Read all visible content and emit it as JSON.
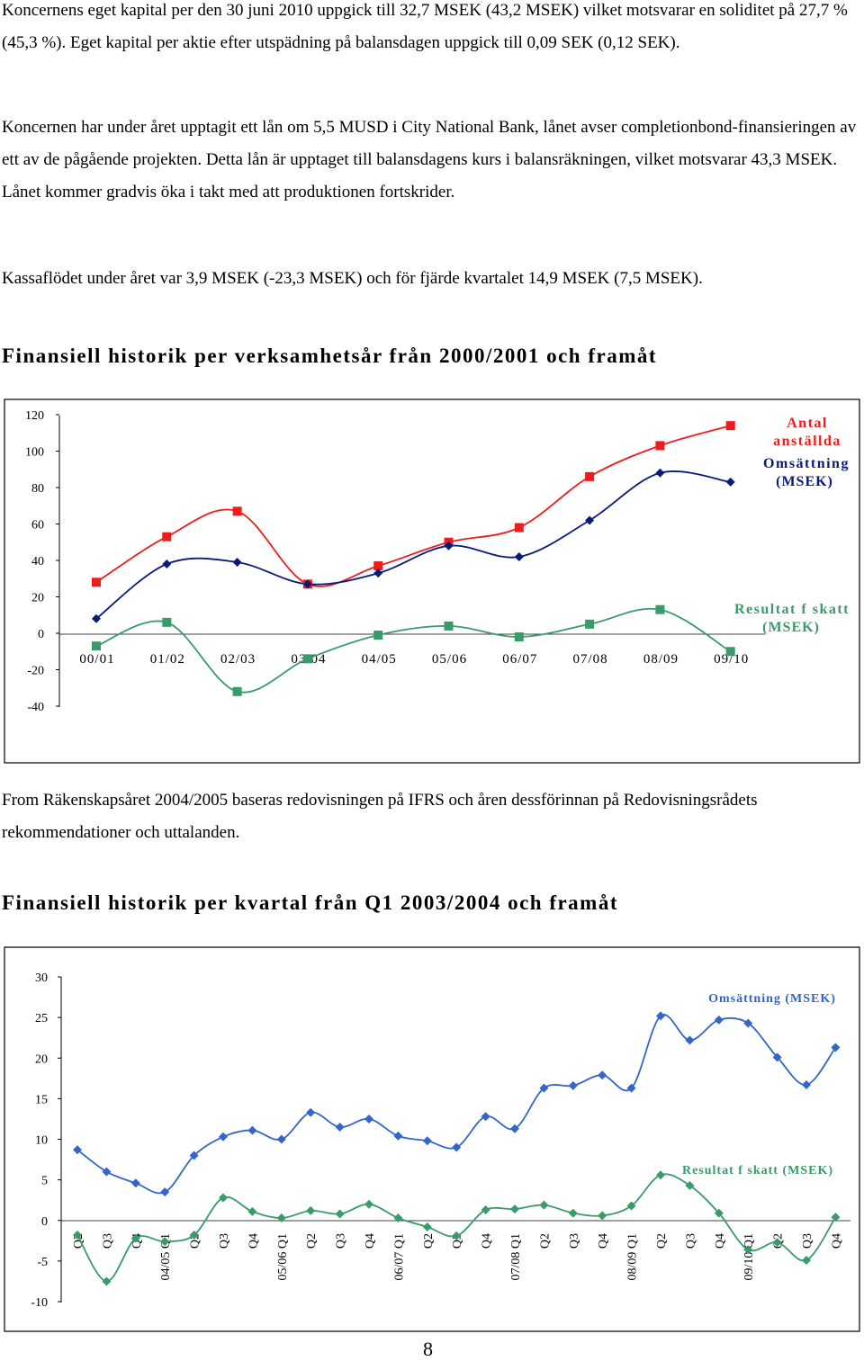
{
  "paragraphs": [
    "Koncernens eget kapital per den 30 juni 2010 uppgick till 32,7 MSEK (43,2 MSEK) vilket motsvarar en soliditet på 27,7 % (45,3 %). Eget kapital per aktie efter utspädning på balansdagen uppgick till 0,09 SEK (0,12 SEK).",
    "Koncernen har under året upptagit ett lån om 5,5 MUSD i City National Bank, lånet avser completionbond-finansieringen av ett av de pågående projekten. Detta lån är upptaget till balansdagens kurs i balansräkningen, vilket motsvarar 43,3 MSEK. Lånet kommer gradvis öka i takt med att produktionen fortskrider.",
    "Kassaflödet under året var 3,9 MSEK (-23,3 MSEK) och för fjärde kvartalet 14,9 MSEK (7,5 MSEK)."
  ],
  "heading1": "Finansiell historik per verksamhetsår från 2000/2001 och framåt",
  "note": "From Räkenskapsåret 2004/2005 baseras redovisningen på IFRS och åren dessförinnan på Redovisningsrådets rekommendationer och uttalanden.",
  "heading2": "Finansiell historik per kvartal från Q1 2003/2004 och framåt",
  "page_number": "8",
  "colors": {
    "red": "#ee1c1c",
    "navy": "#0a1a7a",
    "green": "#3a9a6a",
    "blue": "#3465c8"
  },
  "chart_data": [
    {
      "type": "line",
      "title": "Finansiell historik per verksamhetsår från 2000/2001 och framåt",
      "categories": [
        "00/01",
        "01/02",
        "02/03",
        "03/04",
        "04/05",
        "05/06",
        "06/07",
        "07/08",
        "08/09",
        "09/10"
      ],
      "ylim": [
        -40,
        120
      ],
      "yticks": [
        120,
        100,
        80,
        60,
        40,
        20,
        0,
        -20,
        -40
      ],
      "series": [
        {
          "name": "Antal anställda",
          "color": "#ee1c1c",
          "marker": "square",
          "values": [
            28,
            53,
            67,
            27,
            37,
            50,
            58,
            86,
            103,
            114
          ]
        },
        {
          "name": "Omsättning (MSEK)",
          "color": "#0a1a7a",
          "marker": "diamond",
          "values": [
            8,
            38,
            39,
            27,
            33,
            48,
            42,
            62,
            88,
            83
          ]
        },
        {
          "name": "Resultat f skatt (MSEK)",
          "color": "#3a9a6a",
          "marker": "square",
          "values": [
            -7,
            6,
            -32,
            -14,
            -1,
            4,
            -2,
            5,
            13,
            -10
          ]
        }
      ],
      "legend_labels": [
        "Antal",
        "anställda",
        "Omsättning",
        "(MSEK)",
        "Resultat f skatt",
        "(MSEK)"
      ]
    },
    {
      "type": "line",
      "title": "Finansiell historik per kvartal från Q1 2003/2004 och framåt",
      "categories": [
        "Q2",
        "Q3",
        "Q4",
        "04/05 Q1",
        "Q2",
        "Q3",
        "Q4",
        "05/06 Q1",
        "Q2",
        "Q3",
        "Q4",
        "06/07 Q1",
        "Q2",
        "Q3",
        "Q4",
        "07/08 Q1",
        "Q2",
        "Q3",
        "Q4",
        "08/09 Q1",
        "Q2",
        "Q3",
        "Q4",
        "09/10 Q1",
        "Q2",
        "Q3",
        "Q4"
      ],
      "ylim": [
        -10,
        30
      ],
      "yticks": [
        30,
        25,
        20,
        15,
        10,
        5,
        0,
        -5,
        -10
      ],
      "series": [
        {
          "name": "Omsättning (MSEK)",
          "color": "#3465c8",
          "marker": "diamond",
          "values": [
            8.7,
            6,
            4.6,
            3.5,
            8,
            10.3,
            11.1,
            10,
            13.3,
            11.5,
            12.5,
            10.4,
            9.8,
            9,
            12.8,
            11.3,
            16.3,
            16.6,
            17.9,
            16.3,
            25.2,
            22.2,
            24.7,
            24.3,
            20.1,
            16.7,
            21.3
          ]
        },
        {
          "name": "Resultat f skatt (MSEK)",
          "color": "#3a9a6a",
          "marker": "diamond",
          "values": [
            -1.8,
            -7.5,
            -2.2,
            -2.6,
            -1.8,
            2.8,
            1.1,
            0.3,
            1.2,
            0.8,
            2,
            0.3,
            -0.8,
            -1.9,
            1.3,
            1.4,
            1.9,
            0.9,
            0.6,
            1.8,
            5.6,
            4.3,
            0.9,
            -3.6,
            -2.7,
            -4.9,
            0.4
          ]
        }
      ],
      "series_labels": [
        "Omsättning (MSEK)",
        "Resultat f skatt (MSEK)"
      ]
    }
  ]
}
